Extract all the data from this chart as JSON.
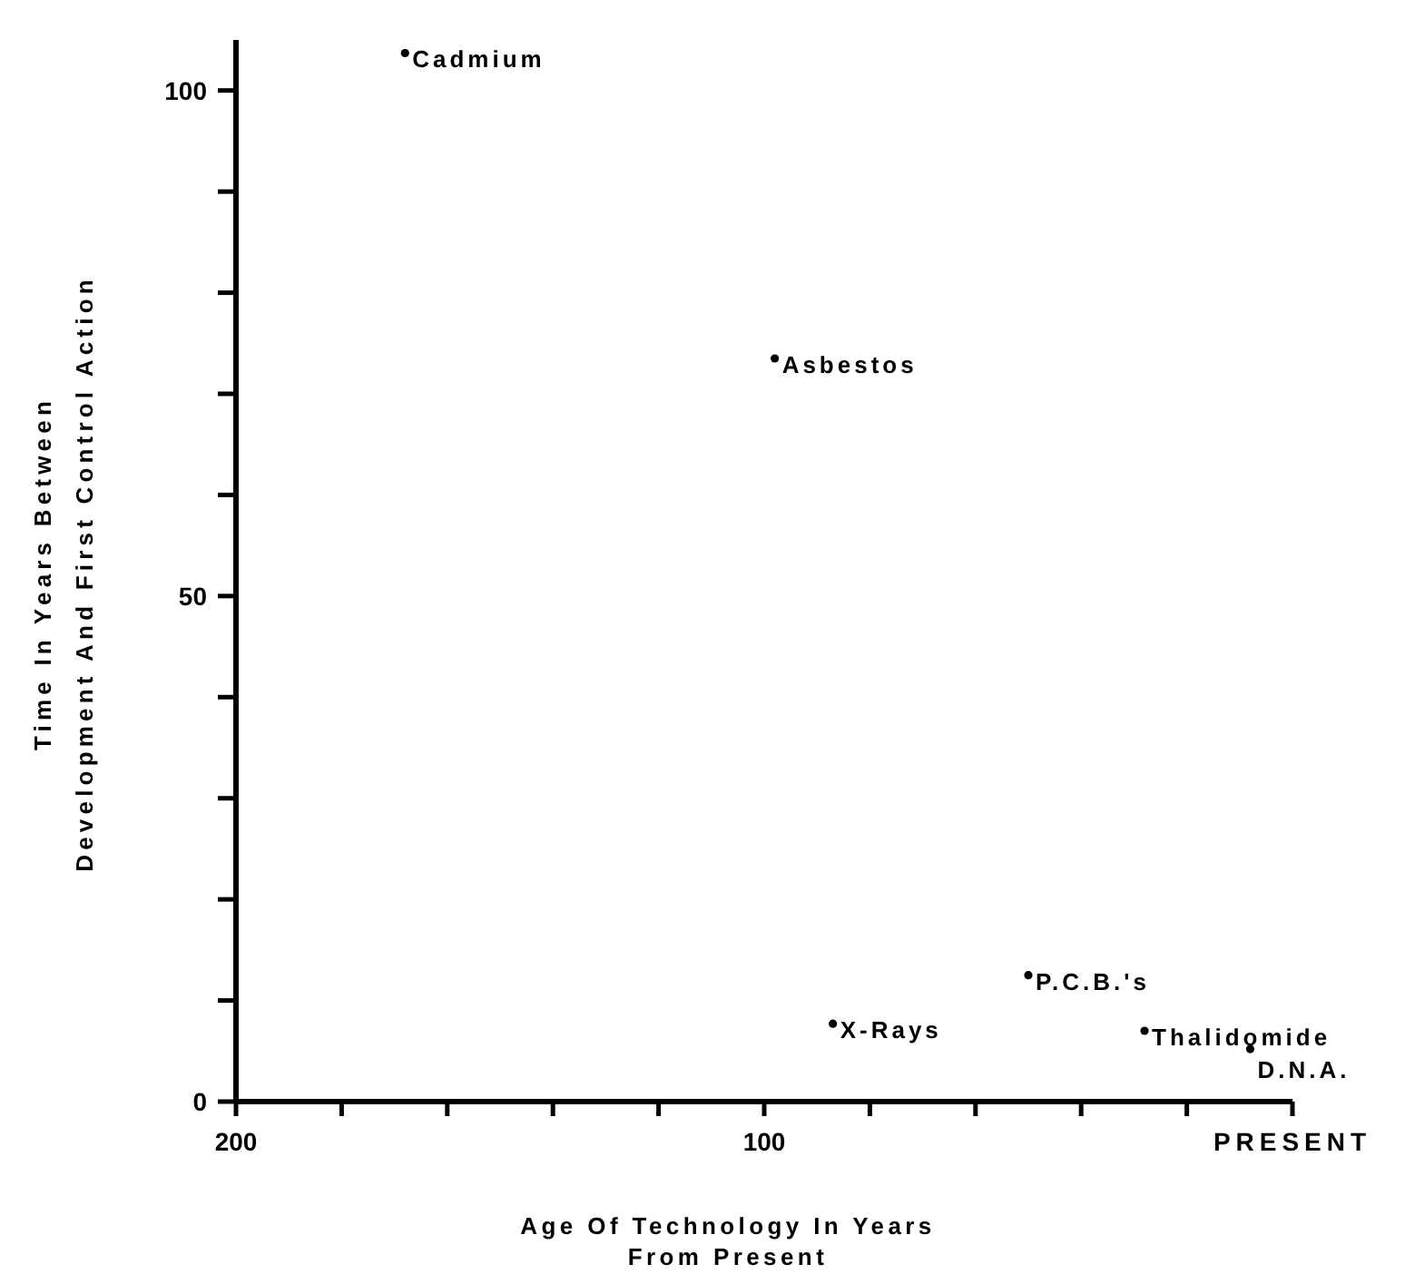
{
  "chart_data": {
    "type": "scatter",
    "xlabel": "Age Of Technology In Years\nFrom Present",
    "ylabel": "Time In Years Between\nDevelopment And First Control Action",
    "x": [
      168,
      98,
      87,
      50,
      28,
      8
    ],
    "values": [
      103.7,
      73.5,
      7.7,
      12.5,
      7,
      5.2
    ],
    "color": "#000000",
    "marker": "circle",
    "grid": false,
    "xlim": [
      200,
      0
    ],
    "xticks": [
      200,
      {
        "value": 180,
        "label": null
      },
      {
        "value": 160,
        "label": null
      },
      {
        "value": 140,
        "label": null
      },
      {
        "value": 120,
        "label": null
      },
      100,
      {
        "value": 80,
        "label": null
      },
      {
        "value": 60,
        "label": null
      },
      {
        "value": 40,
        "label": null
      },
      {
        "value": 20,
        "label": null
      },
      {
        "value": 0,
        "label": "PRESENT"
      }
    ],
    "ylim": [
      0,
      105
    ],
    "yticks": [
      0,
      {
        "value": 10,
        "label": null
      },
      {
        "value": 20,
        "label": null
      },
      {
        "value": 30,
        "label": null
      },
      {
        "value": 40,
        "label": null
      },
      50,
      {
        "value": 60,
        "label": null
      },
      {
        "value": 70,
        "label": null
      },
      {
        "value": 80,
        "label": null
      },
      {
        "value": 90,
        "label": null
      },
      100
    ],
    "annotations": [
      {
        "text": "Cadmium",
        "x": 168,
        "y": 103.7
      },
      {
        "text": "Asbestos",
        "x": 98,
        "y": 73.5
      },
      {
        "text": "X-Rays",
        "x": 87,
        "y": 7.7
      },
      {
        "text": "P.C.B.'s",
        "x": 50,
        "y": 12.5
      },
      {
        "text": "Thalidomide",
        "x": 28,
        "y": 7
      },
      {
        "text": "D.N.A.",
        "x": 8,
        "y": 5.2
      }
    ]
  }
}
